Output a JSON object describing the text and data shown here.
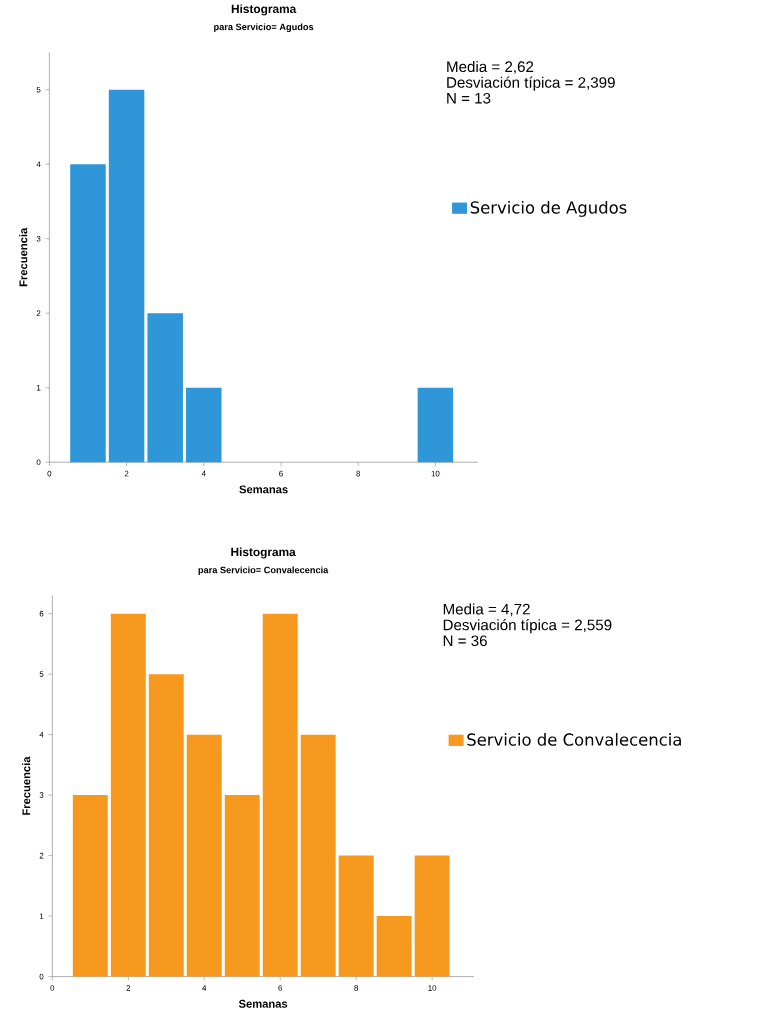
{
  "chart_data": [
    {
      "type": "histogram",
      "title": "Histograma",
      "subtitle": "para Servicio= Agudos",
      "xlabel": "Semanas",
      "ylabel": "Frecuencia",
      "bins": [
        0.5,
        1.5,
        2.5,
        3.5,
        4.5,
        5.5,
        6.5,
        7.5,
        8.5,
        9.5,
        10.5
      ],
      "series": [
        {
          "name": "Servicio de Agudos",
          "color": "#2f96d8",
          "values": [
            4,
            5,
            2,
            1,
            0,
            0,
            0,
            0,
            0,
            1
          ]
        }
      ],
      "xlim": [
        0,
        11.1
      ],
      "ylim": [
        0,
        5.5
      ],
      "xticks": [
        0,
        2,
        4,
        6,
        8,
        10
      ],
      "yticks": [
        0,
        1,
        2,
        3,
        4,
        5
      ],
      "annotations": [
        "Media = 2,62",
        "Desviación típica = 2,399",
        "N = 13"
      ],
      "legend": "right"
    },
    {
      "type": "histogram",
      "title": "Histograma",
      "subtitle": "para Servicio= Convalecencia",
      "xlabel": "Semanas",
      "ylabel": "Frecuencia",
      "bins": [
        0.5,
        1.5,
        2.5,
        3.5,
        4.5,
        5.5,
        6.5,
        7.5,
        8.5,
        9.5,
        10.5
      ],
      "series": [
        {
          "name": "Servicio de Convalecencia",
          "color": "#f7991f",
          "values": [
            3,
            6,
            5,
            4,
            3,
            6,
            4,
            2,
            1,
            2
          ]
        }
      ],
      "xlim": [
        0,
        11.1
      ],
      "ylim": [
        0,
        6.3
      ],
      "xticks": [
        0,
        2,
        4,
        6,
        8,
        10
      ],
      "yticks": [
        0,
        1,
        2,
        3,
        4,
        5,
        6
      ],
      "annotations": [
        "Media = 4,72",
        "Desviación típica = 2,559",
        "N = 36"
      ],
      "legend": "right"
    }
  ]
}
